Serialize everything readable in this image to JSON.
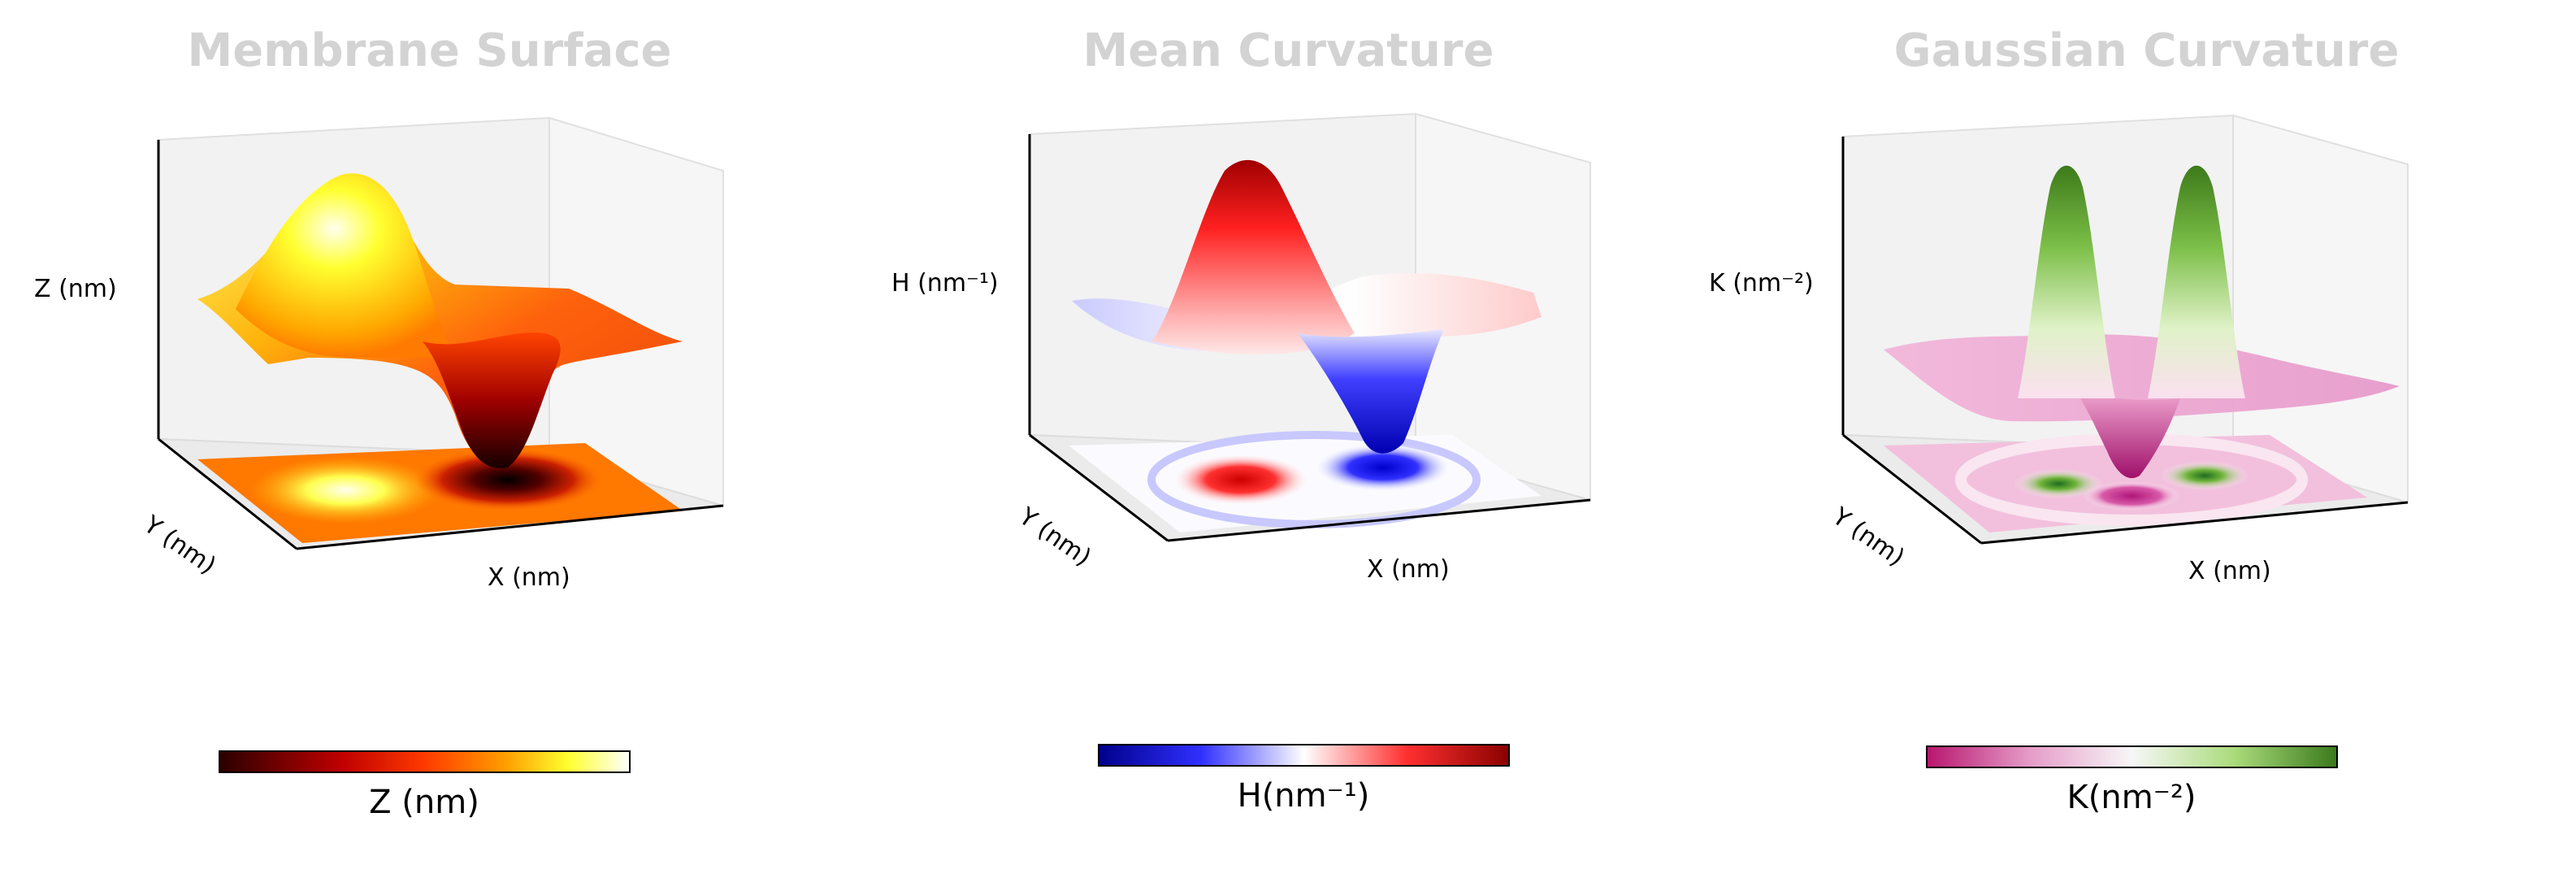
{
  "panels": [
    {
      "title": "Membrane Surface",
      "xlabel": "X (nm)",
      "ylabel": "Y (nm)",
      "zlabel": "Z (nm)",
      "colorbar_label": "Z (nm)",
      "colormap": "hot",
      "colormap_colors": [
        "#1a0000",
        "#8b0000",
        "#ff2a00",
        "#ff8c00",
        "#ffee00",
        "#ffffff"
      ]
    },
    {
      "title": "Mean Curvature",
      "xlabel": "X (nm)",
      "ylabel": "Y (nm)",
      "zlabel": "H (nm⁻¹)",
      "colorbar_label": "H(nm⁻¹)",
      "colormap": "bwr",
      "colormap_colors": [
        "#0000ff",
        "#8080ff",
        "#ffffff",
        "#ff8080",
        "#ff0000"
      ]
    },
    {
      "title": "Gaussian Curvature",
      "xlabel": "X (nm)",
      "ylabel": "Y (nm)",
      "zlabel": "K (nm⁻²)",
      "colorbar_label": "K(nm⁻²)",
      "colormap": "PiYG",
      "colormap_colors": [
        "#c51b7d",
        "#e9a3c9",
        "#f7f7f7",
        "#a1d76a",
        "#4d9221"
      ]
    }
  ],
  "chart_data": [
    {
      "type": "surface3d",
      "title": "Membrane Surface",
      "xlabel": "X (nm)",
      "ylabel": "Y (nm)",
      "zlabel": "Z (nm)",
      "features": [
        {
          "kind": "bump",
          "sign": 1,
          "x": 0.27,
          "y": 0.5
        },
        {
          "kind": "dip",
          "sign": -1,
          "x": 0.73,
          "y": 0.5
        }
      ],
      "colorbar": "Z (nm)"
    },
    {
      "type": "surface3d",
      "title": "Mean Curvature",
      "xlabel": "X (nm)",
      "ylabel": "Y (nm)",
      "zlabel": "H (nm⁻¹)",
      "features": [
        {
          "kind": "peak",
          "sign": 1,
          "x": 0.4,
          "y": 0.5
        },
        {
          "kind": "dip",
          "sign": -1,
          "x": 0.62,
          "y": 0.5
        }
      ],
      "colorbar": "H(nm⁻¹)"
    },
    {
      "type": "surface3d",
      "title": "Gaussian Curvature",
      "xlabel": "X (nm)",
      "ylabel": "Y (nm)",
      "zlabel": "K (nm⁻²)",
      "features": [
        {
          "kind": "peak",
          "sign": 1,
          "x": 0.35,
          "y": 0.5
        },
        {
          "kind": "peak",
          "sign": 1,
          "x": 0.65,
          "y": 0.5
        },
        {
          "kind": "dip",
          "sign": -1,
          "x": 0.5,
          "y": 0.5
        }
      ],
      "colorbar": "K(nm⁻²)"
    }
  ]
}
